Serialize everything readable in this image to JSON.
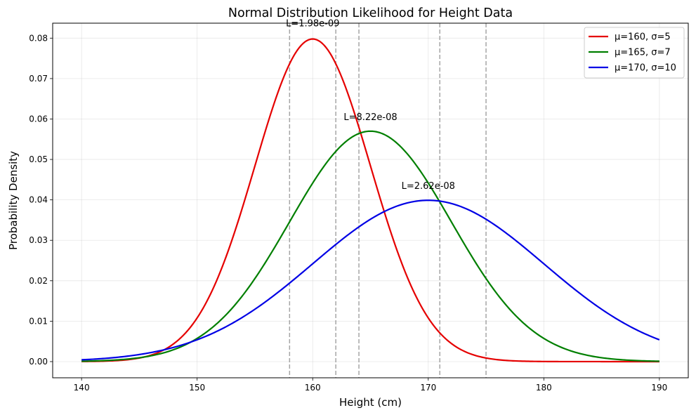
{
  "chart_data": {
    "type": "line",
    "title": "Normal Distribution Likelihood for Height Data",
    "xlabel": "Height (cm)",
    "ylabel": "Probability Density",
    "xlim": [
      137.5,
      192.5
    ],
    "ylim": [
      -0.004,
      0.0837
    ],
    "x_ticks": [
      "140",
      "150",
      "160",
      "170",
      "180",
      "190"
    ],
    "y_ticks": [
      "0.00",
      "0.01",
      "0.02",
      "0.03",
      "0.04",
      "0.05",
      "0.06",
      "0.07",
      "0.08"
    ],
    "grid": true,
    "legend_position": "top-right",
    "x_range": [
      140,
      190
    ],
    "series": [
      {
        "name": "μ=160, σ=5",
        "mu": 160,
        "sigma": 5,
        "color": "#e50000"
      },
      {
        "name": "μ=165, σ=7",
        "mu": 165,
        "sigma": 7,
        "color": "#007f00"
      },
      {
        "name": "μ=170, σ=10",
        "mu": 170,
        "sigma": 10,
        "color": "#0000e5"
      }
    ],
    "data_points": [
      158,
      162,
      164,
      171,
      175
    ],
    "annotations": [
      {
        "text": "L=1.98e-09",
        "x": 160,
        "y": 0.0829
      },
      {
        "text": "L=8.22e-08",
        "x": 165,
        "y": 0.0597
      },
      {
        "text": "L=2.62e-08",
        "x": 170,
        "y": 0.0427
      }
    ]
  }
}
